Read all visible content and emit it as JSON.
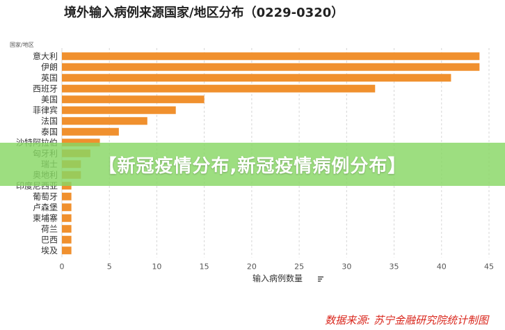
{
  "chart_data": {
    "type": "bar",
    "orientation": "horizontal",
    "title": "境外输入病例来源国家/地区分布（0229-0320）",
    "y_axis_title": "国家/地区",
    "xlabel": "输入病例数量",
    "categories": [
      "意大利",
      "伊朗",
      "英国",
      "西班牙",
      "美国",
      "菲律宾",
      "法国",
      "泰国",
      "沙特阿拉伯",
      "匈牙利",
      "瑞士",
      "奥地利",
      "印度尼西亚",
      "葡萄牙",
      "卢森堡",
      "柬埔寨",
      "荷兰",
      "巴西",
      "埃及"
    ],
    "values": [
      44,
      44,
      41,
      33,
      15,
      12,
      9,
      6,
      4,
      3,
      2,
      2,
      1,
      1,
      1,
      1,
      1,
      1,
      1
    ],
    "xlim": [
      0,
      45
    ],
    "x_ticks": [
      "0",
      "5",
      "10",
      "15",
      "20",
      "25",
      "30",
      "35",
      "40",
      "45"
    ],
    "bar_color": "#f0902e",
    "grid": "vertical-dashed"
  },
  "banner": {
    "text": "【新冠疫情分布,新冠疫情病例分布】"
  },
  "source": {
    "text": "数据来源: 苏宁金融研究院统计制图"
  },
  "icons": {
    "sort_icon": "sort-icon"
  }
}
